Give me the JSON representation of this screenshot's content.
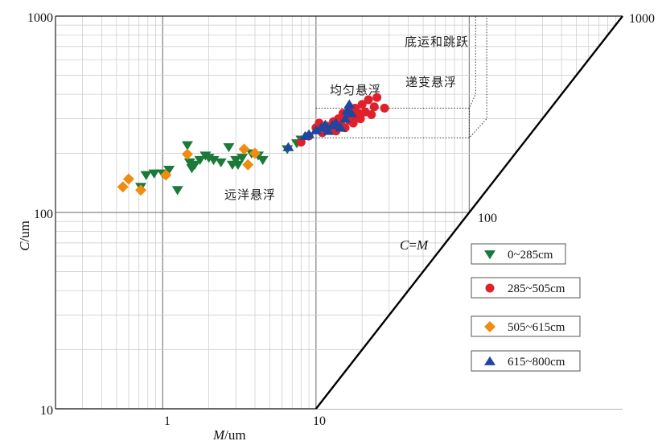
{
  "chart_data": {
    "type": "scatter",
    "xscale": "log",
    "yscale": "log",
    "xlim": [
      0.2,
      1000
    ],
    "ylim": [
      10,
      1000
    ],
    "xlabel": {
      "italic": "M",
      "rest": "/um"
    },
    "ylabel": {
      "italic": "C",
      "rest": "/um"
    },
    "x_tick_labels": [
      "1",
      "10"
    ],
    "y_tick_labels": [
      "1000",
      "100",
      "10"
    ],
    "diag_tick_labels": [
      "100",
      "1000"
    ],
    "diagonal_label": {
      "italic_c": "C",
      "eq": "=",
      "italic_m": "M"
    },
    "grid": true,
    "legend_position": "right",
    "zones": {
      "pelagic": "远洋悬浮",
      "uniform": "均匀悬浮",
      "graded": "递变悬浮",
      "rolling": "底运和跳跃"
    },
    "series": [
      {
        "name": "0~285cm",
        "marker": "triangle-down",
        "color": "#1a7a3a",
        "points": [
          [
            0.72,
            135
          ],
          [
            0.78,
            155
          ],
          [
            0.88,
            158
          ],
          [
            1.0,
            158
          ],
          [
            1.1,
            165
          ],
          [
            1.25,
            130
          ],
          [
            1.45,
            220
          ],
          [
            1.5,
            180
          ],
          [
            1.55,
            168
          ],
          [
            1.62,
            175
          ],
          [
            1.75,
            185
          ],
          [
            1.9,
            195
          ],
          [
            2.0,
            190
          ],
          [
            2.15,
            185
          ],
          [
            2.4,
            180
          ],
          [
            2.7,
            215
          ],
          [
            2.85,
            175
          ],
          [
            3.0,
            185
          ],
          [
            3.1,
            175
          ],
          [
            3.3,
            190
          ],
          [
            3.8,
            200
          ],
          [
            4.2,
            195
          ],
          [
            4.5,
            185
          ],
          [
            6.5,
            210
          ],
          [
            7.5,
            225
          ],
          [
            8.0,
            235
          ]
        ]
      },
      {
        "name": "285~505cm",
        "marker": "circle",
        "color": "#e0202a",
        "points": [
          [
            8.0,
            228
          ],
          [
            9.0,
            245
          ],
          [
            10.0,
            270
          ],
          [
            10.5,
            285
          ],
          [
            11.0,
            255
          ],
          [
            11.8,
            275
          ],
          [
            12.5,
            265
          ],
          [
            13.0,
            290
          ],
          [
            13.5,
            260
          ],
          [
            14.0,
            300
          ],
          [
            14.5,
            280
          ],
          [
            15.0,
            320
          ],
          [
            15.5,
            270
          ],
          [
            16.0,
            310
          ],
          [
            16.5,
            295
          ],
          [
            17.0,
            330
          ],
          [
            17.5,
            285
          ],
          [
            18.0,
            340
          ],
          [
            18.5,
            305
          ],
          [
            19.0,
            320
          ],
          [
            19.5,
            300
          ],
          [
            20.0,
            355
          ],
          [
            21.0,
            325
          ],
          [
            22.0,
            375
          ],
          [
            23.0,
            315
          ],
          [
            24.0,
            345
          ],
          [
            25.0,
            385
          ],
          [
            28.0,
            340
          ]
        ]
      },
      {
        "name": "505~615cm",
        "marker": "diamond",
        "color": "#f08c10",
        "points": [
          [
            0.55,
            135
          ],
          [
            0.6,
            148
          ],
          [
            0.72,
            130
          ],
          [
            1.05,
            155
          ],
          [
            1.45,
            198
          ],
          [
            3.4,
            210
          ],
          [
            3.6,
            175
          ],
          [
            4.0,
            200
          ]
        ]
      },
      {
        "name": "615~800cm",
        "marker": "triangle-up",
        "color": "#1c46a0",
        "points": [
          [
            6.6,
            215
          ],
          [
            8.5,
            245
          ],
          [
            9.0,
            250
          ],
          [
            10.0,
            262
          ],
          [
            10.8,
            270
          ],
          [
            11.5,
            280
          ],
          [
            12.0,
            260
          ],
          [
            12.8,
            278
          ],
          [
            13.5,
            285
          ],
          [
            14.5,
            270
          ],
          [
            15.5,
            300
          ],
          [
            16.0,
            330
          ],
          [
            16.5,
            355
          ],
          [
            17.0,
            320
          ]
        ]
      }
    ]
  }
}
